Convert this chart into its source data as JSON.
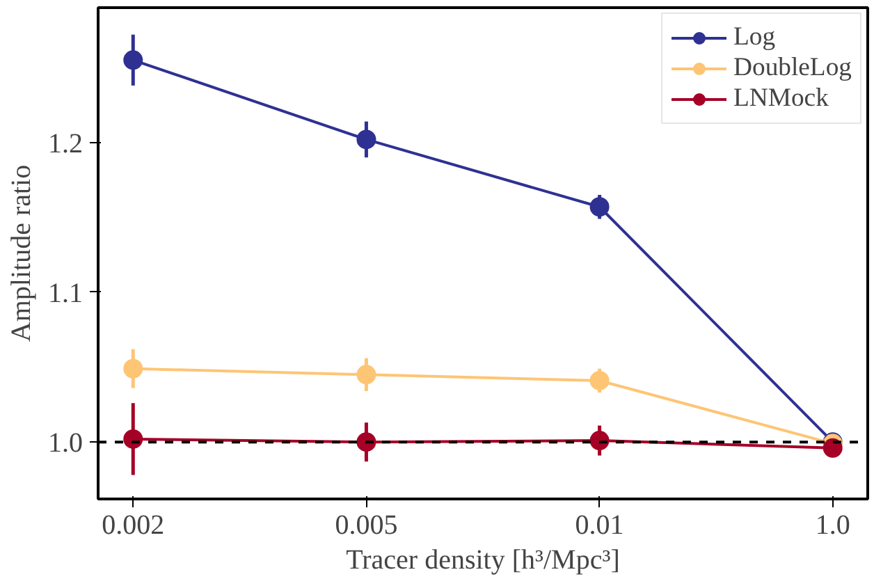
{
  "chart_data": {
    "type": "line",
    "xlabel": "Tracer density [h³/Mpc³]",
    "ylabel": "Amplitude ratio",
    "categories": [
      "0.002",
      "0.005",
      "0.01",
      "1.0"
    ],
    "series": [
      {
        "name": "Log",
        "color": "#2e3192",
        "values": [
          1.255,
          1.202,
          1.157,
          1.0
        ],
        "errors": [
          0.017,
          0.012,
          0.008,
          null
        ]
      },
      {
        "name": "DoubleLog",
        "color": "#fec575",
        "values": [
          1.049,
          1.045,
          1.041,
          0.999
        ],
        "errors": [
          0.013,
          0.011,
          0.008,
          null
        ]
      },
      {
        "name": "LNMock",
        "color": "#a50026",
        "values": [
          1.002,
          1.0,
          1.001,
          0.996
        ],
        "errors": [
          0.024,
          0.013,
          0.01,
          null
        ]
      }
    ],
    "ylim": [
      0.962,
      1.29
    ],
    "yticks": [
      {
        "value": 1.0,
        "label": "1.0"
      },
      1.1,
      1.2
    ],
    "ref_lines": [
      {
        "axis": "y",
        "value": 1.0,
        "color": "#000000",
        "line_style": "dashed"
      }
    ],
    "marker": "circle",
    "line_style": "solid",
    "legend": "top right",
    "grid": false
  }
}
